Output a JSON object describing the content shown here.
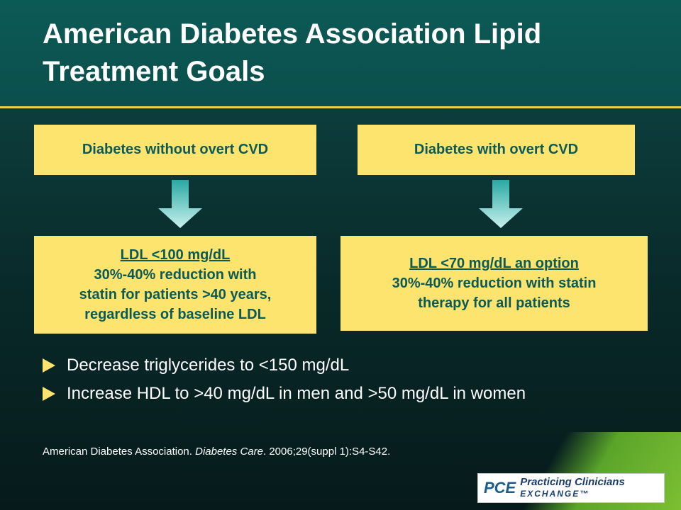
{
  "slide": {
    "title": "American Diabetes Association Lipid Treatment Goals",
    "colors": {
      "accent_yellow": "#fde46f",
      "box_text": "#0c5a56",
      "arrow": "#3fb8b3",
      "band": "#0c5a56",
      "green_corner": "#7dbf33"
    }
  },
  "columns": [
    {
      "header": "Diabetes without overt CVD",
      "goal_heading": "LDL <100 mg/dL",
      "goal_lines": [
        "30%-40% reduction with",
        "statin for patients >40 years,",
        "regardless of baseline LDL"
      ]
    },
    {
      "header": "Diabetes with overt CVD",
      "goal_heading": "LDL <70 mg/dL an option",
      "goal_lines": [
        "30%-40% reduction with statin",
        "therapy for all patients"
      ]
    }
  ],
  "bullets": [
    "Decrease triglycerides to <150 mg/dL",
    "Increase HDL to >40 mg/dL in men and >50 mg/dL in women"
  ],
  "citation": {
    "before": "American Diabetes Association. ",
    "journal": "Diabetes Care",
    "after": ". 2006;29(suppl 1):S4-S42."
  },
  "logo": {
    "mark": "PCE",
    "line1": "Practicing Clinicians",
    "line2": "EXCHANGE™"
  }
}
